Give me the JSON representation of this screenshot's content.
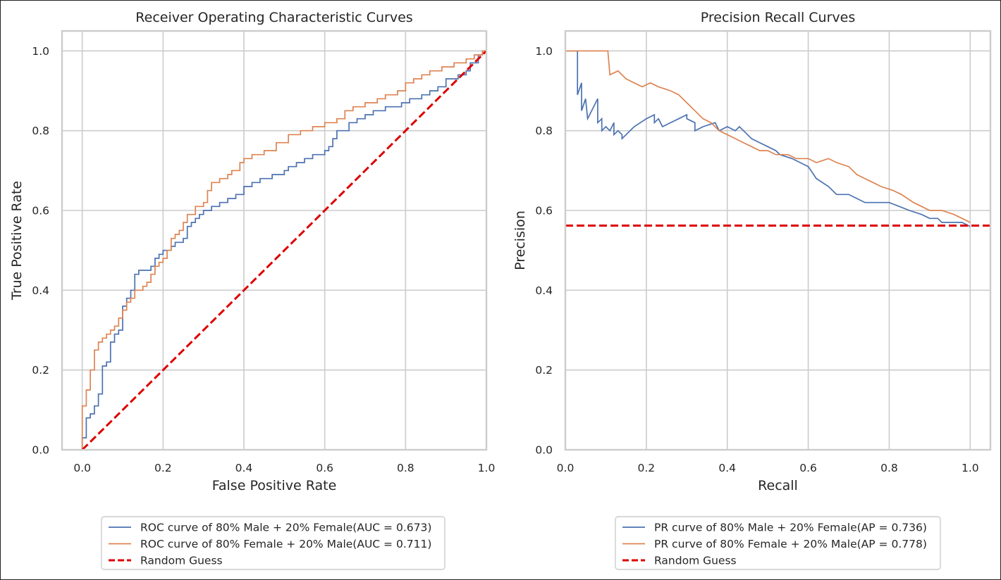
{
  "chart_data": [
    {
      "type": "line",
      "title": "Receiver Operating Characteristic Curves",
      "xlabel": "False Positive Rate",
      "ylabel": "True Positive Rate",
      "xlim": [
        -0.05,
        1.0
      ],
      "ylim": [
        0.0,
        1.05
      ],
      "xticks": [
        "0.0",
        "0.2",
        "0.4",
        "0.6",
        "0.8",
        "1.0"
      ],
      "yticks": [
        "0.0",
        "0.2",
        "0.4",
        "0.6",
        "0.8",
        "1.0"
      ],
      "grid": true,
      "legend_position": "below",
      "series": [
        {
          "name": "ROC curve of 80% Male + 20% Female(AUC = 0.673)",
          "color": "#4c72b0",
          "style": "step",
          "points": [
            [
              0.0,
              0.0
            ],
            [
              0.0,
              0.03
            ],
            [
              0.01,
              0.05
            ],
            [
              0.01,
              0.08
            ],
            [
              0.02,
              0.09
            ],
            [
              0.03,
              0.11
            ],
            [
              0.04,
              0.14
            ],
            [
              0.05,
              0.18
            ],
            [
              0.05,
              0.21
            ],
            [
              0.06,
              0.22
            ],
            [
              0.07,
              0.27
            ],
            [
              0.08,
              0.29
            ],
            [
              0.09,
              0.3
            ],
            [
              0.1,
              0.32
            ],
            [
              0.1,
              0.36
            ],
            [
              0.11,
              0.38
            ],
            [
              0.12,
              0.4
            ],
            [
              0.13,
              0.42
            ],
            [
              0.13,
              0.44
            ],
            [
              0.14,
              0.45
            ],
            [
              0.16,
              0.45
            ],
            [
              0.17,
              0.46
            ],
            [
              0.18,
              0.48
            ],
            [
              0.19,
              0.49
            ],
            [
              0.2,
              0.5
            ],
            [
              0.22,
              0.51
            ],
            [
              0.23,
              0.52
            ],
            [
              0.25,
              0.53
            ],
            [
              0.26,
              0.56
            ],
            [
              0.27,
              0.57
            ],
            [
              0.28,
              0.58
            ],
            [
              0.29,
              0.59
            ],
            [
              0.3,
              0.6
            ],
            [
              0.32,
              0.61
            ],
            [
              0.34,
              0.62
            ],
            [
              0.36,
              0.63
            ],
            [
              0.38,
              0.64
            ],
            [
              0.4,
              0.66
            ],
            [
              0.42,
              0.67
            ],
            [
              0.44,
              0.68
            ],
            [
              0.47,
              0.69
            ],
            [
              0.5,
              0.7
            ],
            [
              0.51,
              0.71
            ],
            [
              0.53,
              0.72
            ],
            [
              0.55,
              0.73
            ],
            [
              0.57,
              0.74
            ],
            [
              0.6,
              0.75
            ],
            [
              0.61,
              0.76
            ],
            [
              0.62,
              0.78
            ],
            [
              0.63,
              0.8
            ],
            [
              0.66,
              0.82
            ],
            [
              0.68,
              0.83
            ],
            [
              0.7,
              0.84
            ],
            [
              0.72,
              0.85
            ],
            [
              0.75,
              0.86
            ],
            [
              0.79,
              0.87
            ],
            [
              0.81,
              0.88
            ],
            [
              0.84,
              0.89
            ],
            [
              0.86,
              0.9
            ],
            [
              0.88,
              0.91
            ],
            [
              0.9,
              0.93
            ],
            [
              0.93,
              0.94
            ],
            [
              0.95,
              0.95
            ],
            [
              0.96,
              0.97
            ],
            [
              0.98,
              0.99
            ],
            [
              0.99,
              1.0
            ],
            [
              1.0,
              1.0
            ]
          ]
        },
        {
          "name": "ROC curve of 80% Female + 20% Male(AUC = 0.711)",
          "color": "#dd8452",
          "style": "step",
          "points": [
            [
              0.0,
              0.0
            ],
            [
              0.0,
              0.11
            ],
            [
              0.01,
              0.12
            ],
            [
              0.01,
              0.15
            ],
            [
              0.02,
              0.18
            ],
            [
              0.02,
              0.2
            ],
            [
              0.03,
              0.22
            ],
            [
              0.03,
              0.25
            ],
            [
              0.04,
              0.27
            ],
            [
              0.05,
              0.28
            ],
            [
              0.06,
              0.29
            ],
            [
              0.07,
              0.3
            ],
            [
              0.08,
              0.31
            ],
            [
              0.09,
              0.33
            ],
            [
              0.1,
              0.35
            ],
            [
              0.11,
              0.37
            ],
            [
              0.12,
              0.38
            ],
            [
              0.13,
              0.4
            ],
            [
              0.15,
              0.41
            ],
            [
              0.16,
              0.42
            ],
            [
              0.17,
              0.44
            ],
            [
              0.18,
              0.46
            ],
            [
              0.19,
              0.47
            ],
            [
              0.2,
              0.48
            ],
            [
              0.21,
              0.5
            ],
            [
              0.22,
              0.53
            ],
            [
              0.23,
              0.54
            ],
            [
              0.24,
              0.55
            ],
            [
              0.25,
              0.57
            ],
            [
              0.26,
              0.59
            ],
            [
              0.28,
              0.61
            ],
            [
              0.3,
              0.62
            ],
            [
              0.31,
              0.65
            ],
            [
              0.32,
              0.67
            ],
            [
              0.34,
              0.68
            ],
            [
              0.36,
              0.69
            ],
            [
              0.37,
              0.7
            ],
            [
              0.39,
              0.72
            ],
            [
              0.4,
              0.73
            ],
            [
              0.42,
              0.74
            ],
            [
              0.45,
              0.75
            ],
            [
              0.48,
              0.77
            ],
            [
              0.51,
              0.79
            ],
            [
              0.54,
              0.8
            ],
            [
              0.57,
              0.81
            ],
            [
              0.6,
              0.82
            ],
            [
              0.63,
              0.83
            ],
            [
              0.65,
              0.85
            ],
            [
              0.67,
              0.86
            ],
            [
              0.7,
              0.87
            ],
            [
              0.73,
              0.88
            ],
            [
              0.75,
              0.89
            ],
            [
              0.78,
              0.9
            ],
            [
              0.8,
              0.92
            ],
            [
              0.82,
              0.93
            ],
            [
              0.84,
              0.94
            ],
            [
              0.86,
              0.95
            ],
            [
              0.89,
              0.96
            ],
            [
              0.92,
              0.97
            ],
            [
              0.95,
              0.98
            ],
            [
              0.97,
              0.99
            ],
            [
              0.99,
              1.0
            ],
            [
              1.0,
              1.0
            ]
          ]
        },
        {
          "name": "Random Guess",
          "color": "#dd0000",
          "style": "dashed",
          "points": [
            [
              0.0,
              0.0
            ],
            [
              1.0,
              1.0
            ]
          ]
        }
      ]
    },
    {
      "type": "line",
      "title": "Precision Recall Curves",
      "xlabel": "Recall",
      "ylabel": "Precision",
      "xlim": [
        0.0,
        1.05
      ],
      "ylim": [
        0.0,
        1.05
      ],
      "xticks": [
        "0.0",
        "0.2",
        "0.4",
        "0.6",
        "0.8",
        "1.0"
      ],
      "yticks": [
        "0.0",
        "0.2",
        "0.4",
        "0.6",
        "0.8",
        "1.0"
      ],
      "grid": true,
      "legend_position": "below",
      "series": [
        {
          "name": "PR curve of 80% Male + 20% Female(AP = 0.736)",
          "color": "#4c72b0",
          "style": "line",
          "points": [
            [
              0.0,
              1.0
            ],
            [
              0.03,
              1.0
            ],
            [
              0.03,
              0.89
            ],
            [
              0.04,
              0.92
            ],
            [
              0.04,
              0.85
            ],
            [
              0.05,
              0.88
            ],
            [
              0.055,
              0.83
            ],
            [
              0.08,
              0.88
            ],
            [
              0.08,
              0.82
            ],
            [
              0.09,
              0.83
            ],
            [
              0.09,
              0.8
            ],
            [
              0.1,
              0.81
            ],
            [
              0.11,
              0.8
            ],
            [
              0.12,
              0.82
            ],
            [
              0.12,
              0.79
            ],
            [
              0.13,
              0.8
            ],
            [
              0.14,
              0.79
            ],
            [
              0.14,
              0.78
            ],
            [
              0.17,
              0.81
            ],
            [
              0.2,
              0.83
            ],
            [
              0.22,
              0.84
            ],
            [
              0.22,
              0.82
            ],
            [
              0.23,
              0.83
            ],
            [
              0.24,
              0.81
            ],
            [
              0.26,
              0.82
            ],
            [
              0.28,
              0.83
            ],
            [
              0.3,
              0.84
            ],
            [
              0.3,
              0.83
            ],
            [
              0.32,
              0.82
            ],
            [
              0.32,
              0.8
            ],
            [
              0.34,
              0.81
            ],
            [
              0.37,
              0.82
            ],
            [
              0.38,
              0.8
            ],
            [
              0.4,
              0.81
            ],
            [
              0.42,
              0.8
            ],
            [
              0.43,
              0.81
            ],
            [
              0.45,
              0.79
            ],
            [
              0.46,
              0.78
            ],
            [
              0.48,
              0.77
            ],
            [
              0.5,
              0.76
            ],
            [
              0.52,
              0.75
            ],
            [
              0.53,
              0.74
            ],
            [
              0.56,
              0.73
            ],
            [
              0.58,
              0.72
            ],
            [
              0.6,
              0.71
            ],
            [
              0.62,
              0.68
            ],
            [
              0.65,
              0.66
            ],
            [
              0.67,
              0.64
            ],
            [
              0.7,
              0.64
            ],
            [
              0.72,
              0.63
            ],
            [
              0.74,
              0.62
            ],
            [
              0.8,
              0.62
            ],
            [
              0.85,
              0.6
            ],
            [
              0.88,
              0.59
            ],
            [
              0.9,
              0.58
            ],
            [
              0.92,
              0.58
            ],
            [
              0.93,
              0.57
            ],
            [
              0.96,
              0.57
            ],
            [
              0.98,
              0.57
            ],
            [
              1.0,
              0.56
            ]
          ]
        },
        {
          "name": "PR curve of 80% Female + 20% Male(AP = 0.778)",
          "color": "#dd8452",
          "style": "line",
          "points": [
            [
              0.0,
              1.0
            ],
            [
              0.105,
              1.0
            ],
            [
              0.11,
              0.94
            ],
            [
              0.13,
              0.95
            ],
            [
              0.15,
              0.93
            ],
            [
              0.17,
              0.92
            ],
            [
              0.19,
              0.91
            ],
            [
              0.21,
              0.92
            ],
            [
              0.23,
              0.91
            ],
            [
              0.26,
              0.9
            ],
            [
              0.28,
              0.89
            ],
            [
              0.3,
              0.87
            ],
            [
              0.32,
              0.85
            ],
            [
              0.34,
              0.83
            ],
            [
              0.36,
              0.82
            ],
            [
              0.38,
              0.8
            ],
            [
              0.4,
              0.79
            ],
            [
              0.42,
              0.78
            ],
            [
              0.44,
              0.77
            ],
            [
              0.46,
              0.76
            ],
            [
              0.48,
              0.75
            ],
            [
              0.5,
              0.75
            ],
            [
              0.52,
              0.74
            ],
            [
              0.55,
              0.74
            ],
            [
              0.57,
              0.73
            ],
            [
              0.6,
              0.73
            ],
            [
              0.62,
              0.72
            ],
            [
              0.65,
              0.73
            ],
            [
              0.67,
              0.72
            ],
            [
              0.7,
              0.71
            ],
            [
              0.72,
              0.69
            ],
            [
              0.74,
              0.68
            ],
            [
              0.76,
              0.67
            ],
            [
              0.78,
              0.66
            ],
            [
              0.81,
              0.65
            ],
            [
              0.83,
              0.64
            ],
            [
              0.86,
              0.62
            ],
            [
              0.88,
              0.61
            ],
            [
              0.9,
              0.6
            ],
            [
              0.93,
              0.6
            ],
            [
              0.96,
              0.59
            ],
            [
              0.98,
              0.58
            ],
            [
              1.0,
              0.57
            ]
          ]
        },
        {
          "name": "Random Guess",
          "color": "#dd0000",
          "style": "dashed",
          "points": [
            [
              0.0,
              0.562
            ],
            [
              1.05,
              0.562
            ]
          ]
        }
      ]
    }
  ]
}
